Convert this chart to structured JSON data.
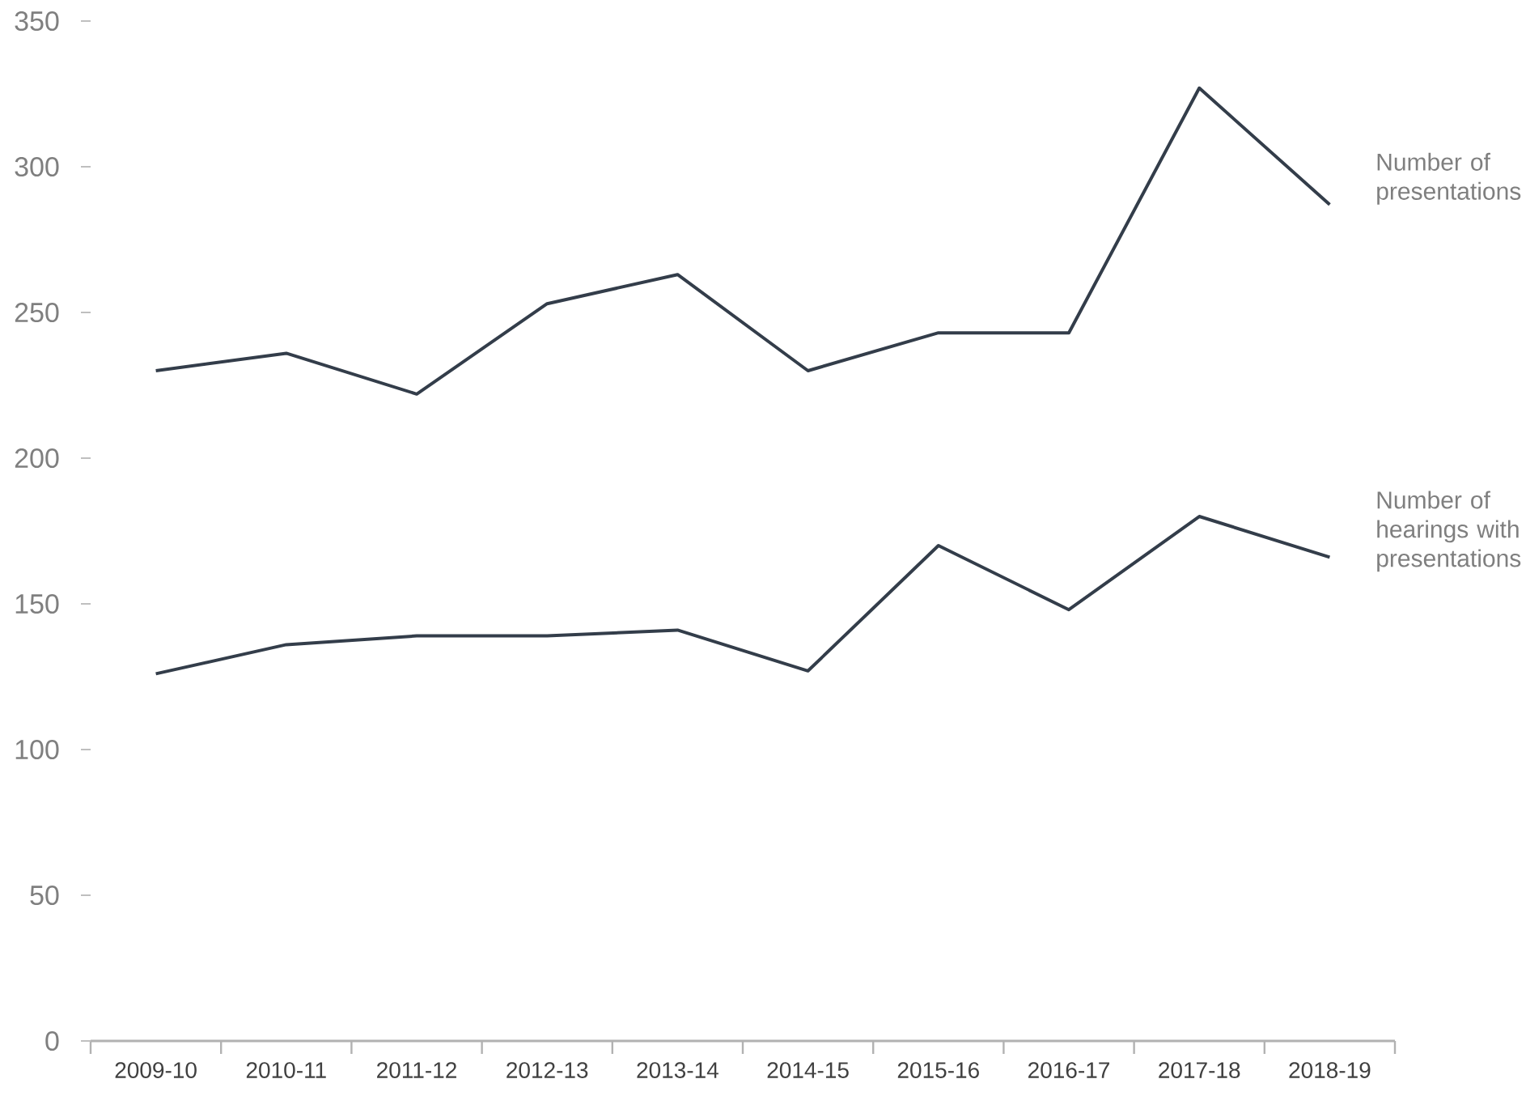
{
  "chart_data": {
    "type": "line",
    "categories": [
      "2009-10",
      "2010-11",
      "2011-12",
      "2012-13",
      "2013-14",
      "2014-15",
      "2015-16",
      "2016-17",
      "2017-18",
      "2018-19"
    ],
    "series": [
      {
        "name": "Number of presentations",
        "color": "#333d4a",
        "values": [
          230,
          236,
          222,
          253,
          263,
          230,
          243,
          243,
          327,
          287
        ]
      },
      {
        "name": "Number of hearings with presentations",
        "color": "#333d4a",
        "values": [
          126,
          136,
          139,
          139,
          141,
          127,
          170,
          148,
          180,
          166
        ]
      }
    ],
    "ylim": [
      0,
      350
    ],
    "yticks": [
      0,
      50,
      100,
      150,
      200,
      250,
      300,
      350
    ],
    "grid": false,
    "legend": false,
    "marker": "none",
    "line_style": "solid"
  }
}
